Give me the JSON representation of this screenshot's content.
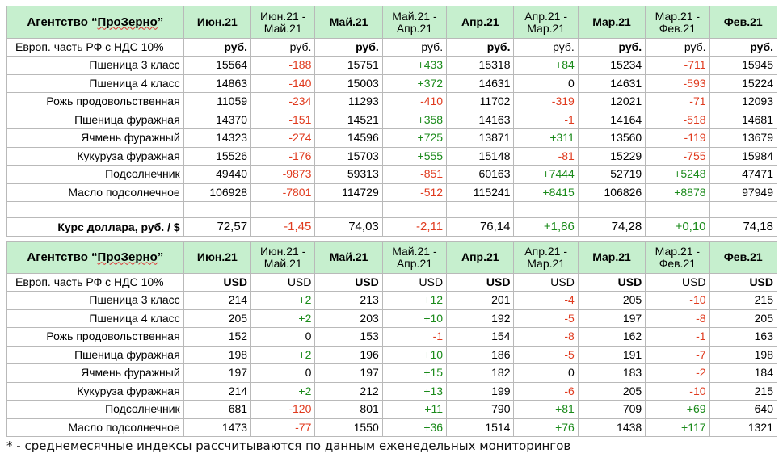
{
  "agency": "Агентство “ПроЗерно”",
  "agency_underlined": "ПроЗерно",
  "columns": [
    "Июн.21",
    "Июн.21 -\nМай.21",
    "Май.21",
    "Май.21 -\nАпр.21",
    "Апр.21",
    "Апр.21 -\nМар.21",
    "Мар.21",
    "Мар.21 -\nФев.21",
    "Фев.21"
  ],
  "region_label": "Европ. часть РФ с НДС 10%",
  "rub_section": {
    "units": [
      "руб.",
      "руб.",
      "руб.",
      "руб.",
      "руб.",
      "руб.",
      "руб.",
      "руб.",
      "руб."
    ],
    "rows": [
      {
        "name": "Пшеница 3 класс",
        "values": [
          "15564",
          "-188",
          "15751",
          "+433",
          "15318",
          "+84",
          "15234",
          "-711",
          "15945"
        ]
      },
      {
        "name": "Пшеница 4 класс",
        "values": [
          "14863",
          "-140",
          "15003",
          "+372",
          "14631",
          "0",
          "14631",
          "-593",
          "15224"
        ]
      },
      {
        "name": "Рожь продовольственная",
        "values": [
          "11059",
          "-234",
          "11293",
          "-410",
          "11702",
          "-319",
          "12021",
          "-71",
          "12093"
        ]
      },
      {
        "name": "Пшеница фуражная",
        "values": [
          "14370",
          "-151",
          "14521",
          "+358",
          "14163",
          "-1",
          "14164",
          "-518",
          "14681"
        ]
      },
      {
        "name": "Ячмень фуражный",
        "values": [
          "14323",
          "-274",
          "14596",
          "+725",
          "13871",
          "+311",
          "13560",
          "-119",
          "13679"
        ]
      },
      {
        "name": "Кукуруза фуражная",
        "values": [
          "15526",
          "-176",
          "15703",
          "+555",
          "15148",
          "-81",
          "15229",
          "-755",
          "15984"
        ]
      },
      {
        "name": "Подсолнечник",
        "values": [
          "49440",
          "-9873",
          "59313",
          "-851",
          "60163",
          "+7444",
          "52719",
          "+5248",
          "47471"
        ]
      },
      {
        "name": "Масло подсолнечное",
        "values": [
          "106928",
          "-7801",
          "114729",
          "-512",
          "115241",
          "+8415",
          "106826",
          "+8878",
          "97949"
        ]
      }
    ]
  },
  "exchange_rate": {
    "label": "Курс доллара, руб. / $",
    "values": [
      "72,57",
      "-1,45",
      "74,03",
      "-2,11",
      "76,14",
      "+1,86",
      "74,28",
      "+0,10",
      "74,18"
    ]
  },
  "usd_section": {
    "units": [
      "USD",
      "USD",
      "USD",
      "USD",
      "USD",
      "USD",
      "USD",
      "USD",
      "USD"
    ],
    "rows": [
      {
        "name": "Пшеница 3 класс",
        "values": [
          "214",
          "+2",
          "213",
          "+12",
          "201",
          "-4",
          "205",
          "-10",
          "215"
        ]
      },
      {
        "name": "Пшеница 4 класс",
        "values": [
          "205",
          "+2",
          "203",
          "+10",
          "192",
          "-5",
          "197",
          "-8",
          "205"
        ]
      },
      {
        "name": "Рожь продовольственная",
        "values": [
          "152",
          "0",
          "153",
          "-1",
          "154",
          "-8",
          "162",
          "-1",
          "163"
        ]
      },
      {
        "name": "Пшеница фуражная",
        "values": [
          "198",
          "+2",
          "196",
          "+10",
          "186",
          "-5",
          "191",
          "-7",
          "198"
        ]
      },
      {
        "name": "Ячмень фуражный",
        "values": [
          "197",
          "0",
          "197",
          "+15",
          "182",
          "0",
          "183",
          "-2",
          "184"
        ]
      },
      {
        "name": "Кукуруза фуражная",
        "values": [
          "214",
          "+2",
          "212",
          "+13",
          "199",
          "-6",
          "205",
          "-10",
          "215"
        ]
      },
      {
        "name": "Подсолнечник",
        "values": [
          "681",
          "-120",
          "801",
          "+11",
          "790",
          "+81",
          "709",
          "+69",
          "640"
        ]
      },
      {
        "name": "Масло подсолнечное",
        "values": [
          "1473",
          "-77",
          "1550",
          "+36",
          "1514",
          "+76",
          "1438",
          "+117",
          "1321"
        ]
      }
    ]
  },
  "colors": {
    "header_bg": "#c6efce",
    "positive": "#1a8a1a",
    "negative": "#e03a1e",
    "border": "#b9b9b9"
  },
  "footnote": "* - среднемесячные индексы рассчитываются по данным еженедельных мониторингов"
}
